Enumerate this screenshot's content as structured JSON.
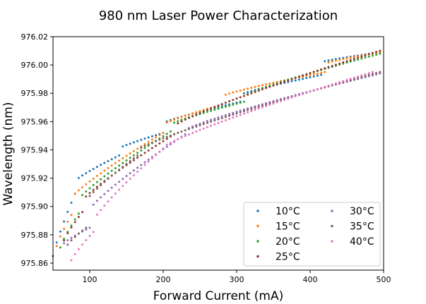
{
  "chart_data": {
    "type": "scatter",
    "title": "980 nm Laser Power Characterization",
    "xlabel": "Forward Current (mA)",
    "ylabel": "Wavelength (nm)",
    "xlim": [
      50,
      500
    ],
    "ylim": [
      975.855,
      976.02
    ],
    "xticks": [
      100,
      200,
      300,
      400,
      500
    ],
    "yticks": [
      975.86,
      975.88,
      975.9,
      975.92,
      975.94,
      975.96,
      975.98,
      976.0,
      976.02
    ],
    "ytick_labels": [
      "975.86",
      "975.88",
      "975.90",
      "975.92",
      "975.94",
      "975.96",
      "975.98",
      "976.00",
      "976.02"
    ],
    "grid": false,
    "legend_position": "lower-right",
    "legend_columns": 2,
    "series": [
      {
        "name": "10°C",
        "color": "#1f77b4",
        "x_start": 50,
        "x_end": 495,
        "step": 5,
        "segments": [
          {
            "x": [
              50,
              80
            ],
            "y": [
              975.865,
              975.909
            ]
          },
          {
            "x": [
              80,
              140
            ],
            "y": [
              975.918,
              975.936
            ]
          },
          {
            "x": [
              140,
              200
            ],
            "y": [
              975.941,
              975.952
            ]
          },
          {
            "x": [
              200,
              305
            ],
            "y": [
              975.959,
              975.974
            ]
          },
          {
            "x": [
              305,
              415
            ],
            "y": [
              975.979,
              975.993
            ]
          },
          {
            "x": [
              415,
              495
            ],
            "y": [
              976.002,
              976.009
            ]
          }
        ]
      },
      {
        "name": "15°C",
        "color": "#ff7f0e",
        "x_start": 55,
        "x_end": 495,
        "step": 5,
        "segments": [
          {
            "x": [
              55,
              75
            ],
            "y": [
              975.872,
              975.894
            ]
          },
          {
            "x": [
              75,
              200
            ],
            "y": [
              975.906,
              975.952
            ]
          },
          {
            "x": [
              200,
              280
            ],
            "y": [
              975.958,
              975.972
            ]
          },
          {
            "x": [
              280,
              420
            ],
            "y": [
              975.978,
              975.995
            ]
          },
          {
            "x": [
              420,
              495
            ],
            "y": [
              976.001,
              976.009
            ]
          }
        ]
      },
      {
        "name": "20°C",
        "color": "#2ca02c",
        "x_start": 60,
        "x_end": 495,
        "step": 5,
        "segments": [
          {
            "x": [
              60,
              85
            ],
            "y": [
              975.871,
              975.895
            ]
          },
          {
            "x": [
              85,
              210
            ],
            "y": [
              975.905,
              975.953
            ]
          },
          {
            "x": [
              210,
              310
            ],
            "y": [
              975.958,
              975.974
            ]
          },
          {
            "x": [
              310,
              495
            ],
            "y": [
              975.978,
              976.008
            ]
          }
        ]
      },
      {
        "name": "25°C",
        "color": "#8c3a2a",
        "x_start": 65,
        "x_end": 495,
        "step": 5,
        "segments": [
          {
            "x": [
              65,
              90
            ],
            "y": [
              975.876,
              975.896
            ]
          },
          {
            "x": [
              90,
              215
            ],
            "y": [
              975.904,
              975.951
            ]
          },
          {
            "x": [
              215,
              495
            ],
            "y": [
              975.957,
              976.01
            ]
          }
        ]
      },
      {
        "name": "30°C",
        "color": "#9467bd",
        "x_start": 65,
        "x_end": 495,
        "step": 5,
        "segments": [
          {
            "x": [
              65,
              100
            ],
            "y": [
              975.874,
              975.885
            ]
          },
          {
            "x": [
              100,
              230
            ],
            "y": [
              975.898,
              975.951
            ]
          },
          {
            "x": [
              230,
              495
            ],
            "y": [
              975.954,
              975.994
            ]
          }
        ]
      },
      {
        "name": "35°C",
        "color": "#7f5f5f",
        "x_start": 70,
        "x_end": 495,
        "step": 5,
        "segments": [
          {
            "x": [
              70,
              95
            ],
            "y": [
              975.873,
              975.885
            ]
          },
          {
            "x": [
              95,
              165
            ],
            "y": [
              975.904,
              975.936
            ]
          },
          {
            "x": [
              165,
              495
            ],
            "y": [
              975.94,
              975.995
            ]
          }
        ]
      },
      {
        "name": "40°C",
        "color": "#e377c2",
        "x_start": 75,
        "x_end": 485,
        "step": 5,
        "segments": [
          {
            "x": [
              75,
              105
            ],
            "y": [
              975.862,
              975.882
            ]
          },
          {
            "x": [
              105,
              200
            ],
            "y": [
              975.89,
              975.941
            ]
          },
          {
            "x": [
              200,
              485
            ],
            "y": [
              975.942,
              975.995
            ]
          }
        ]
      }
    ]
  }
}
